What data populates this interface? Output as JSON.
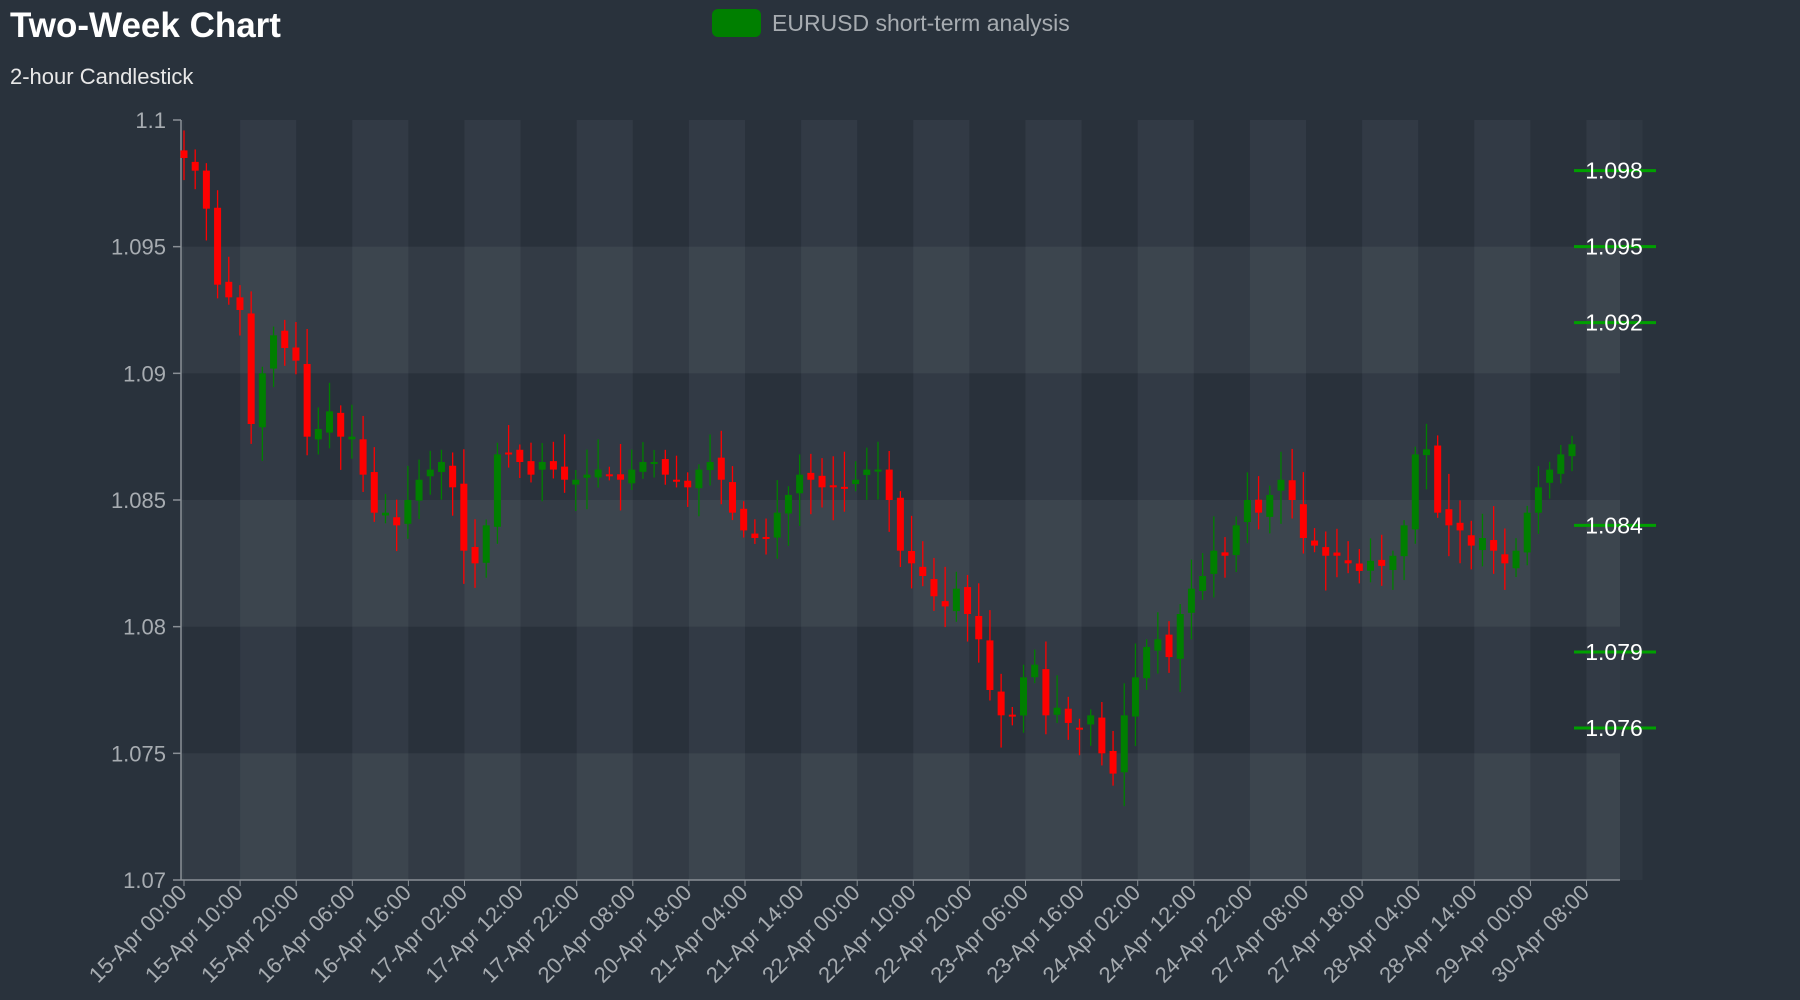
{
  "header": {
    "title": "Two-Week Chart",
    "subtitle": "2-hour Candlestick",
    "legend_label": "EURUSD short-term analysis"
  },
  "colors": {
    "up": "#007f00",
    "down": "#ff0000",
    "level_line": "#00a000",
    "background": "#29323c"
  },
  "chart_data": {
    "type": "candlestick",
    "title": "Two-Week Chart",
    "subtitle": "2-hour Candlestick",
    "series_name": "EURUSD short-term analysis",
    "ylim": [
      1.07,
      1.1
    ],
    "yticks": [
      1.07,
      1.075,
      1.08,
      1.085,
      1.09,
      1.095,
      1.1
    ],
    "ytick_labels": [
      "1.07",
      "1.075",
      "1.08",
      "1.085",
      "1.09",
      "1.095",
      "1.1"
    ],
    "xticks": [
      "15-Apr 00:00",
      "15-Apr 10:00",
      "15-Apr 20:00",
      "16-Apr 06:00",
      "16-Apr 16:00",
      "17-Apr 02:00",
      "17-Apr 12:00",
      "17-Apr 22:00",
      "20-Apr 08:00",
      "20-Apr 18:00",
      "21-Apr 04:00",
      "21-Apr 14:00",
      "22-Apr 00:00",
      "22-Apr 10:00",
      "22-Apr 20:00",
      "23-Apr 06:00",
      "23-Apr 16:00",
      "24-Apr 02:00",
      "24-Apr 12:00",
      "24-Apr 22:00",
      "27-Apr 08:00",
      "27-Apr 18:00",
      "28-Apr 04:00",
      "28-Apr 14:00",
      "29-Apr 00:00",
      "30-Apr 08:00"
    ],
    "levels": [
      {
        "value": 1.098,
        "label": "1.098"
      },
      {
        "value": 1.095,
        "label": "1.095"
      },
      {
        "value": 1.092,
        "label": "1.092"
      },
      {
        "value": 1.084,
        "label": "1.084"
      },
      {
        "value": 1.079,
        "label": "1.079"
      },
      {
        "value": 1.076,
        "label": "1.076"
      }
    ],
    "close_path": [
      1.0985,
      1.098,
      1.0965,
      1.0935,
      1.093,
      1.0925,
      1.088,
      1.09,
      1.0915,
      1.091,
      1.0905,
      1.0875,
      1.0878,
      1.0885,
      1.0875,
      1.0875,
      1.086,
      1.0845,
      1.0845,
      1.084,
      1.085,
      1.0858,
      1.0862,
      1.0865,
      1.0855,
      1.083,
      1.0825,
      1.084,
      1.0868,
      1.0868,
      1.0865,
      1.086,
      1.0865,
      1.0862,
      1.0858,
      1.0858,
      1.086,
      1.0862,
      1.086,
      1.0858,
      1.0862,
      1.0865,
      1.0865,
      1.086,
      1.0858,
      1.0855,
      1.0862,
      1.0865,
      1.0858,
      1.0845,
      1.0838,
      1.0835,
      1.0835,
      1.0845,
      1.0852,
      1.086,
      1.0858,
      1.0855,
      1.0855,
      1.0855,
      1.0858,
      1.0862,
      1.0862,
      1.085,
      1.083,
      1.0825,
      1.082,
      1.0812,
      1.0808,
      1.0815,
      1.0805,
      1.0795,
      1.0775,
      1.0765,
      1.0765,
      1.078,
      1.0785,
      1.0765,
      1.0768,
      1.0762,
      1.076,
      1.0765,
      1.075,
      1.0742,
      1.0765,
      1.078,
      1.0792,
      1.0795,
      1.0788,
      1.0805,
      1.0815,
      1.082,
      1.083,
      1.0828,
      1.084,
      1.085,
      1.0845,
      1.0852,
      1.0858,
      1.085,
      1.0835,
      1.0832,
      1.0828,
      1.0828,
      1.0825,
      1.0822,
      1.0826,
      1.0824,
      1.0828,
      1.084,
      1.0868,
      1.087,
      1.0845,
      1.084,
      1.0838,
      1.0832,
      1.0835,
      1.083,
      1.0825,
      1.083,
      1.0845,
      1.0855,
      1.0862,
      1.0868,
      1.0872
    ]
  }
}
